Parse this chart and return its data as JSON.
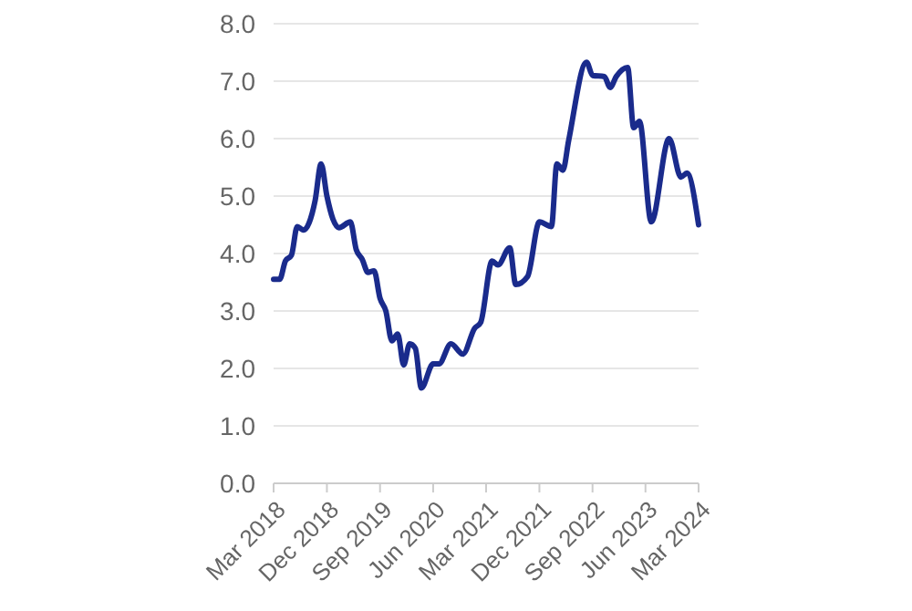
{
  "chart_data": {
    "type": "line",
    "x": [
      "2018-03",
      "2018-04",
      "2018-05",
      "2018-06",
      "2018-07",
      "2018-08",
      "2018-10",
      "2018-11",
      "2018-12",
      "2019-01",
      "2019-02",
      "2019-04",
      "2019-05",
      "2019-06",
      "2019-07",
      "2019-08",
      "2019-09",
      "2019-10",
      "2019-11",
      "2019-12",
      "2020-01",
      "2020-02",
      "2020-03",
      "2020-04",
      "2020-06",
      "2020-07",
      "2020-09",
      "2020-11",
      "2021-01",
      "2021-02",
      "2021-04",
      "2021-05",
      "2021-07",
      "2021-08",
      "2021-10",
      "2021-12",
      "2022-02",
      "2022-03",
      "2022-04",
      "2022-05",
      "2022-08",
      "2022-09",
      "2022-11",
      "2022-12",
      "2023-01",
      "2023-03",
      "2023-04",
      "2023-05",
      "2023-07",
      "2023-10",
      "2023-12",
      "2024-01",
      "2024-03"
    ],
    "series": [
      {
        "color": "#1a2b8c",
        "values": [
          3.55,
          3.55,
          3.87,
          3.97,
          4.47,
          4.41,
          4.92,
          5.56,
          5.0,
          4.6,
          4.45,
          4.55,
          4.07,
          3.9,
          3.67,
          3.7,
          3.22,
          3.0,
          2.48,
          2.6,
          2.06,
          2.43,
          2.35,
          1.66,
          2.08,
          2.08,
          2.43,
          2.25,
          2.7,
          2.8,
          3.87,
          3.8,
          4.1,
          3.46,
          3.6,
          4.55,
          4.47,
          5.56,
          5.45,
          5.97,
          7.33,
          7.1,
          7.08,
          6.89,
          7.08,
          7.24,
          6.19,
          6.3,
          4.55,
          6.0,
          5.33,
          5.4,
          4.5
        ]
      }
    ],
    "xlim": [
      "2018-03",
      "2024-03"
    ],
    "xticks": [
      {
        "value": "2018-03",
        "label": "Mar 2018"
      },
      {
        "value": "2018-12",
        "label": "Dec 2018"
      },
      {
        "value": "2019-09",
        "label": "Sep 2019"
      },
      {
        "value": "2020-06",
        "label": "Jun 2020"
      },
      {
        "value": "2021-03",
        "label": "Mar 2021"
      },
      {
        "value": "2021-12",
        "label": "Dec 2021"
      },
      {
        "value": "2022-09",
        "label": "Sep 2022"
      },
      {
        "value": "2023-06",
        "label": "Jun 2023"
      },
      {
        "value": "2024-03",
        "label": "Mar 2024"
      }
    ],
    "ylim": [
      0,
      8
    ],
    "yticks": [
      {
        "value": 0,
        "label": "0.0"
      },
      {
        "value": 1,
        "label": "1.0"
      },
      {
        "value": 2,
        "label": "2.0"
      },
      {
        "value": 3,
        "label": "3.0"
      },
      {
        "value": 4,
        "label": "4.0"
      },
      {
        "value": 5,
        "label": "5.0"
      },
      {
        "value": 6,
        "label": "6.0"
      },
      {
        "value": 7,
        "label": "7.0"
      },
      {
        "value": 8,
        "label": "8.0"
      }
    ],
    "grid": "y",
    "marker": "none",
    "line_style": "solid"
  }
}
